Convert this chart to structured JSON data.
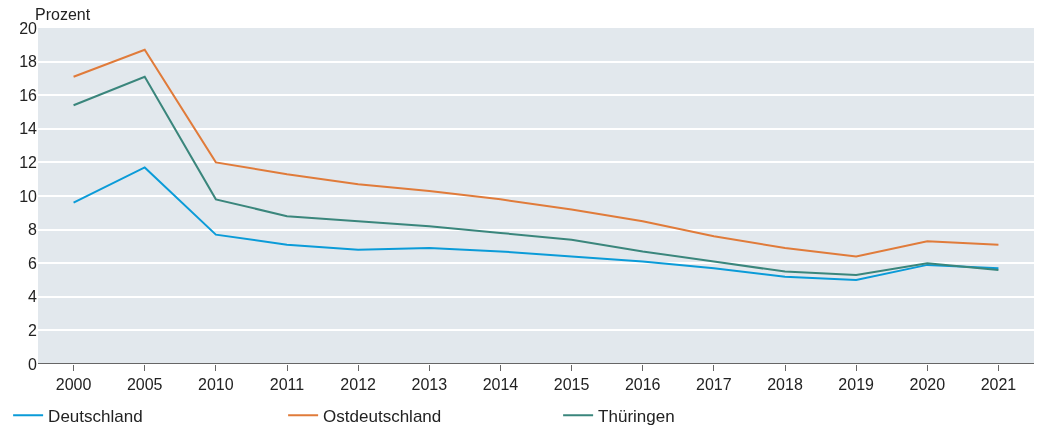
{
  "chart_data": {
    "type": "line",
    "ylabel": "Prozent",
    "categories": [
      "2000",
      "2005",
      "2010",
      "2011",
      "2012",
      "2013",
      "2014",
      "2015",
      "2016",
      "2017",
      "2018",
      "2019",
      "2020",
      "2021"
    ],
    "series": [
      {
        "name": "Deutschland",
        "color": "#0a9bd8",
        "values": [
          9.6,
          11.7,
          7.7,
          7.1,
          6.8,
          6.9,
          6.7,
          6.4,
          6.1,
          5.7,
          5.2,
          5.0,
          5.9,
          5.7
        ]
      },
      {
        "name": "Ostdeutschland",
        "color": "#e07b3a",
        "values": [
          17.1,
          18.7,
          12.0,
          11.3,
          10.7,
          10.3,
          9.8,
          9.2,
          8.5,
          7.6,
          6.9,
          6.4,
          7.3,
          7.1
        ]
      },
      {
        "name": "Thüringen",
        "color": "#3a867c",
        "values": [
          15.4,
          17.1,
          9.8,
          8.8,
          8.5,
          8.2,
          7.8,
          7.4,
          6.7,
          6.1,
          5.5,
          5.3,
          6.0,
          5.6
        ]
      }
    ],
    "ylim": [
      0,
      20
    ],
    "yticks": [
      0,
      2,
      4,
      6,
      8,
      10,
      12,
      14,
      16,
      18,
      20
    ],
    "grid": "y",
    "legend": "bottom left",
    "marker": "none",
    "line_style": "solid"
  }
}
